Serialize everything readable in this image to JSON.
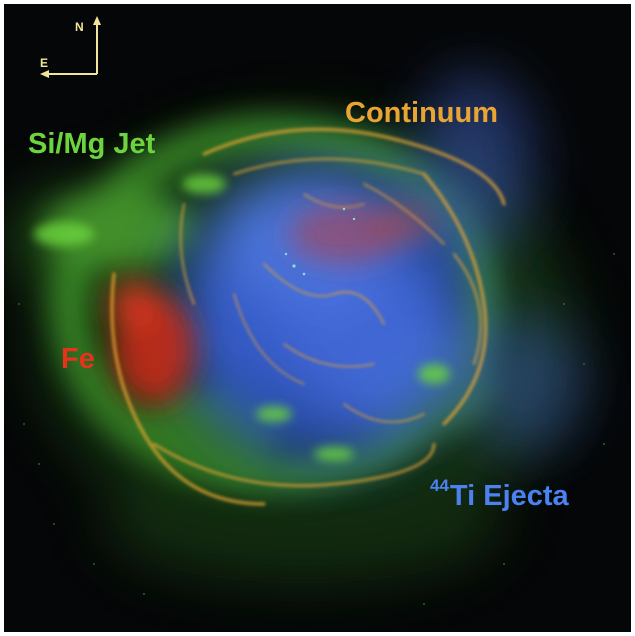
{
  "labels": {
    "jet": "Si/Mg Jet",
    "continuum": "Continuum",
    "fe": "Fe",
    "ti_sup": "44",
    "ti": "Ti Ejecta"
  },
  "compass": {
    "north": "N",
    "east": "E"
  },
  "colors": {
    "background": "#050607",
    "jet": "#6cd43c",
    "continuum": "#e9a534",
    "fe": "#e8321e",
    "ti": "#4a82f2",
    "compass": "#f2e59a"
  }
}
